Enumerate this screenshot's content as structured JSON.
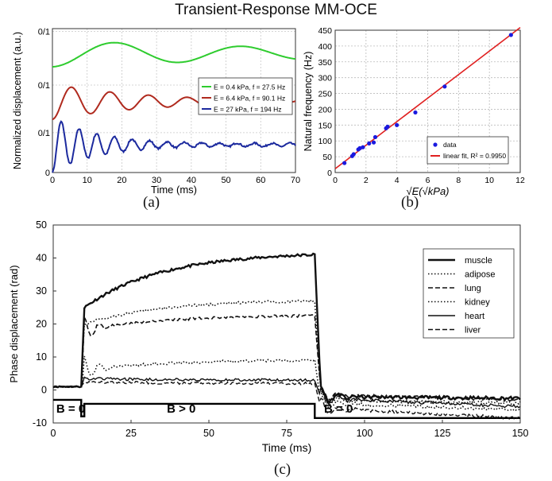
{
  "figure": {
    "title": "Transient-Response MM-OCE",
    "captions": [
      "(a)",
      "(b)",
      "(c)"
    ]
  },
  "chart_data": [
    {
      "type": "line",
      "panel": "(a)",
      "xlabel": "Time (ms)",
      "ylabel": "Normalized displacement (a.u.)",
      "xlim": [
        0,
        70
      ],
      "xticks": [
        0,
        10,
        20,
        30,
        40,
        50,
        60,
        70
      ],
      "yticks": [
        "0",
        "0/1",
        "0/1",
        "0/1"
      ],
      "grid": true,
      "legend_position": "right-middle",
      "series": [
        {
          "name": "E = 0.4 kPa, f = 27.5 Hz",
          "color": "#2ecc2e",
          "frequency_hz": 27.5,
          "decay_ms": 90,
          "offset": 2.15,
          "amplitude": 0.27
        },
        {
          "name": "E = 6.4 kPa, f = 90.1 Hz",
          "color": "#b02a1e",
          "frequency_hz": 90.1,
          "decay_ms": 28,
          "offset": 1.28,
          "amplitude": 0.32
        },
        {
          "name": "E = 27  kPa, f = 194 Hz",
          "color": "#1c2a9e",
          "frequency_hz": 194,
          "decay_ms": 14,
          "offset": 0.5,
          "amplitude": 0.5
        }
      ]
    },
    {
      "type": "scatter",
      "panel": "(b)",
      "xlabel": "√E(√kPa)",
      "ylabel": "Natural frequency (Hz)",
      "xlim": [
        0,
        12
      ],
      "ylim": [
        0,
        450
      ],
      "xticks": [
        0,
        2,
        4,
        6,
        8,
        10,
        12
      ],
      "yticks": [
        0,
        50,
        100,
        150,
        200,
        250,
        300,
        350,
        400,
        450
      ],
      "grid": true,
      "legend_position": "bottom-right",
      "series": [
        {
          "name": "data",
          "color": "#1a1adf",
          "x": [
            0.6,
            1.1,
            1.2,
            1.5,
            1.6,
            1.8,
            2.2,
            2.5,
            2.6,
            3.3,
            3.4,
            4.0,
            5.2,
            7.1,
            11.4
          ],
          "y": [
            30,
            52,
            58,
            73,
            77,
            80,
            92,
            95,
            112,
            140,
            145,
            150,
            190,
            272,
            435
          ]
        },
        {
          "name": "linear fit, R² = 0.9950",
          "color": "#e02020",
          "slope": 37.2,
          "intercept": 12
        }
      ]
    },
    {
      "type": "line",
      "panel": "(c)",
      "xlabel": "Time (ms)",
      "ylabel": "Phase displacement (rad)",
      "xlim": [
        0,
        150
      ],
      "ylim": [
        -10,
        50
      ],
      "xticks": [
        0,
        25,
        50,
        75,
        100,
        125,
        150
      ],
      "yticks": [
        -10,
        0,
        10,
        20,
        30,
        40,
        50
      ],
      "grid": false,
      "legend_position": "top-right",
      "annotations": [
        "B = 0",
        "B > 0",
        "B = 0"
      ],
      "field_pulse": {
        "on_ms": 9,
        "off_ms": 84
      },
      "series": [
        {
          "name": "muscle",
          "style": "solid",
          "width": 2.4,
          "plateau_start": 25,
          "plateau_end": 41,
          "post": -2
        },
        {
          "name": "adipose",
          "style": "dotted",
          "width": 1.6,
          "plateau_start": 20,
          "plateau_end": 27,
          "post": -3
        },
        {
          "name": "lung",
          "style": "dashed",
          "width": 1.6,
          "plateau_start": 18,
          "plateau_end": 22.5,
          "post": -1.5
        },
        {
          "name": "kidney",
          "style": "dotted",
          "width": 1.6,
          "plateau_start": 6,
          "plateau_end": 9,
          "post": -4
        },
        {
          "name": "heart",
          "style": "solid",
          "width": 1.4,
          "plateau_start": 3.5,
          "plateau_end": 3,
          "post": -2.5
        },
        {
          "name": "liver",
          "style": "dashed",
          "width": 1.4,
          "plateau_start": 2.5,
          "plateau_end": 2,
          "post": -5.5
        }
      ]
    }
  ]
}
